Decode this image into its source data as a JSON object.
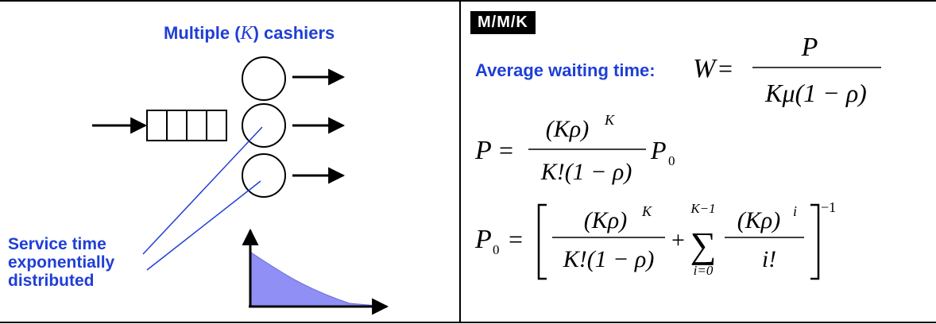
{
  "left_panel": {
    "title_prefix": "Multiple (",
    "title_var": "K",
    "title_suffix": ") cashiers",
    "service_label_lines": [
      "Service time",
      "exponentially",
      "distributed"
    ]
  },
  "right_panel": {
    "badge": "M/M/K",
    "avg_label": "Average waiting time:",
    "formula_W": {
      "lhs": "W",
      "eq": "=",
      "num": "P",
      "den": "Kμ(1 − ρ)"
    },
    "formula_P": {
      "lhs": "P",
      "eq": "=",
      "num": "(Kρ)",
      "num_sup": "K",
      "den": "K!(1 − ρ)",
      "tail": "P",
      "tail_sub": "0"
    },
    "formula_P0": {
      "lhs": "P",
      "lhs_sub": "0",
      "eq": "=",
      "frac1_num": "(Kρ)",
      "frac1_sup": "K",
      "frac1_den": "K!(1 − ρ)",
      "plus": "+",
      "sum_upper": "K−1",
      "sum_lower": "i=0",
      "sum_symbol": "∑",
      "frac2_num": "(Kρ)",
      "frac2_sup": "i",
      "frac2_den": "i!",
      "outer_sup": "−1"
    }
  },
  "colors": {
    "accent": "#1f3fd6",
    "curve_fill": "#8f8ff5",
    "line": "#000000"
  }
}
